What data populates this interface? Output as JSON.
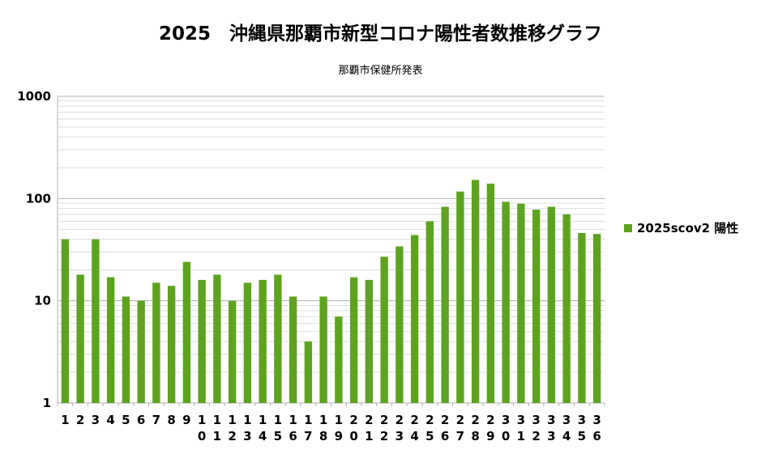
{
  "chart_data": {
    "type": "bar",
    "title": "2025　沖縄県那覇市新型コロナ陽性者数推移グラフ",
    "subtitle": "那覇市保健所発表",
    "xlabel": "",
    "ylabel": "",
    "y_scale": "log",
    "ylim": [
      1,
      1000
    ],
    "y_ticks": [
      "1",
      "10",
      "100",
      "1000"
    ],
    "grid": true,
    "legend_position": "right",
    "categories": [
      "1",
      "2",
      "3",
      "4",
      "5",
      "6",
      "7",
      "8",
      "9",
      "10",
      "11",
      "12",
      "13",
      "14",
      "15",
      "16",
      "17",
      "18",
      "19",
      "20",
      "21",
      "22",
      "23",
      "24",
      "25",
      "26",
      "27",
      "28",
      "29",
      "30",
      "31",
      "32",
      "33",
      "34",
      "35",
      "36"
    ],
    "series": [
      {
        "name": "2025scov2 陽性",
        "color": "#5ea320",
        "values": [
          40,
          18,
          40,
          17,
          11,
          10,
          15,
          14,
          24,
          16,
          18,
          10,
          15,
          16,
          18,
          11,
          4,
          11,
          7,
          17,
          16,
          27,
          34,
          44,
          60,
          83,
          117,
          152,
          140,
          93,
          89,
          78,
          83,
          70,
          46,
          45
        ]
      }
    ]
  }
}
